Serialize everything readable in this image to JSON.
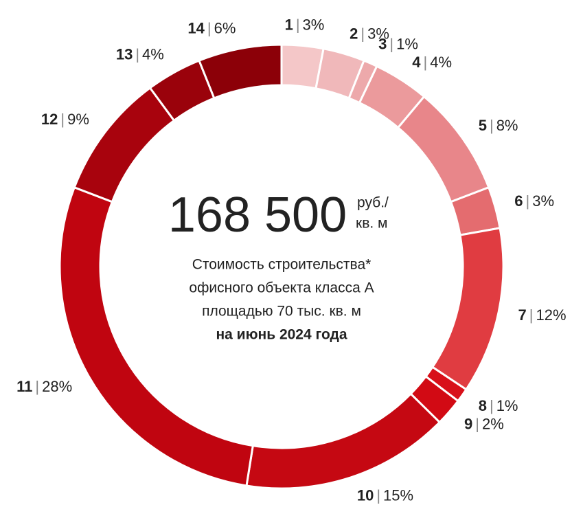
{
  "chart_data": {
    "type": "donut",
    "categories": [
      "1",
      "2",
      "3",
      "4",
      "5",
      "6",
      "7",
      "8",
      "9",
      "10",
      "11",
      "12",
      "13",
      "14"
    ],
    "values": [
      3,
      3,
      1,
      4,
      8,
      3,
      12,
      1,
      2,
      15,
      28,
      9,
      4,
      6
    ],
    "value_labels": [
      "3%",
      "3%",
      "1%",
      "4%",
      "8%",
      "3%",
      "12%",
      "1%",
      "2%",
      "15%",
      "28%",
      "9%",
      "4%",
      "6%"
    ],
    "label_separator": "|",
    "colors": [
      "#f4c7c8",
      "#f0b8ba",
      "#eda9ab",
      "#eb9a9c",
      "#e8868a",
      "#e46c6f",
      "#e03c41",
      "#d8101a",
      "#d20a14",
      "#c50812",
      "#c00510",
      "#a8030d",
      "#9a020b",
      "#8c0008"
    ],
    "center": {
      "value_text": "168 500",
      "unit": [
        "руб./",
        "кв. м"
      ],
      "caption": [
        "Стоимость строительства*",
        "офисного объекта класса А",
        "площадью 70 тыс. кв. м"
      ],
      "date": "на июнь 2024 года"
    }
  }
}
